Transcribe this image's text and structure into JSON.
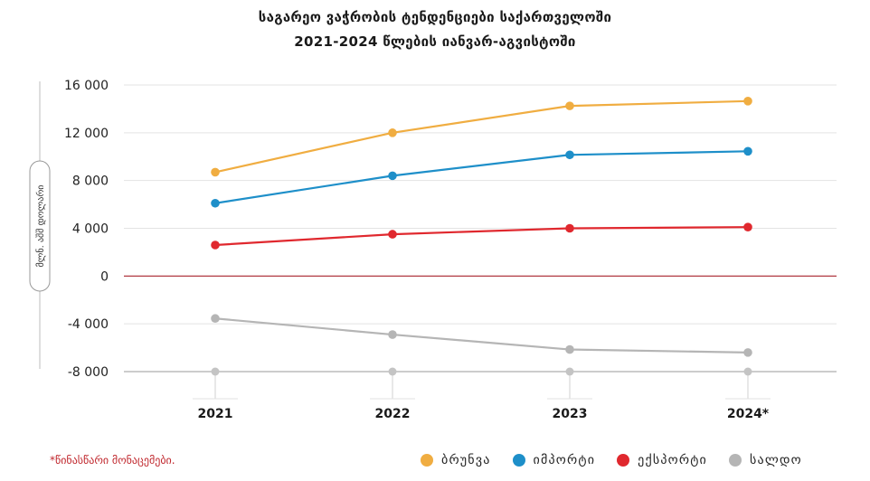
{
  "chart_data": {
    "type": "line",
    "title": "საგარეო ვაჭრობის ტენდენციები საქართველოში",
    "subtitle": "2021-2024 წლების იანვარ-აგვისტოში",
    "ylabel": "მლნ. აშშ დოლარი",
    "xlabel": "",
    "categories": [
      "2021",
      "2022",
      "2023",
      "2024*"
    ],
    "ylim": [
      -8000,
      16000
    ],
    "y_ticks": [
      16000,
      12000,
      8000,
      4000,
      0,
      -4000,
      -8000
    ],
    "y_tick_labels": [
      "16 000",
      "12 000",
      "8 000",
      "4 000",
      "0",
      "-4 000",
      "-8 000"
    ],
    "grid": true,
    "legend_position": "bottom-right",
    "series": [
      {
        "name": "ბრუნვა",
        "color": "#f0ad41",
        "values": [
          8700,
          12000,
          14250,
          14650
        ]
      },
      {
        "name": "იმპორტი",
        "color": "#1e8fc9",
        "values": [
          6100,
          8400,
          10150,
          10450
        ]
      },
      {
        "name": "ექსპორტი",
        "color": "#e0282e",
        "values": [
          2600,
          3500,
          4000,
          4100
        ]
      },
      {
        "name": "სალდო",
        "color": "#b5b5b5",
        "values": [
          -3550,
          -4900,
          -6150,
          -6400
        ]
      }
    ],
    "note": "*წინასწარი მონაცემები."
  },
  "colors": {
    "zero_line": "#a8232b",
    "grid": "#e3e3e3",
    "axis": "#9a9a9a"
  }
}
